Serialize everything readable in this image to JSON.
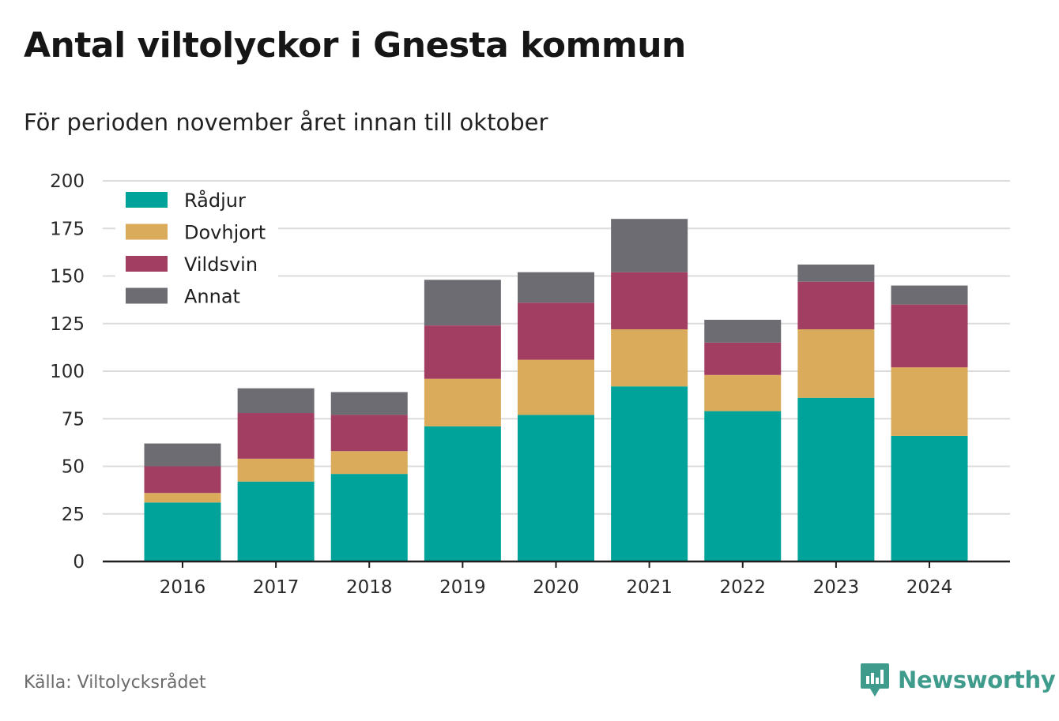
{
  "title": "Antal viltolyckor i Gnesta kommun",
  "subtitle": "För perioden november året innan till oktober",
  "source": "Källa: Viltolycksrådet",
  "brand": "Newsworthy",
  "colors": {
    "Rådjur": "#00a39a",
    "Dovhjort": "#d9ab5a",
    "Vildsvin": "#a33e63",
    "Annat": "#6d6c72",
    "brand": "#3f9b8c",
    "grid": "#dcdcdc",
    "axis": "#1f1f1f"
  },
  "chart_data": {
    "type": "bar",
    "stacked": true,
    "categories": [
      "2016",
      "2017",
      "2018",
      "2019",
      "2020",
      "2021",
      "2022",
      "2023",
      "2024"
    ],
    "series": [
      {
        "name": "Rådjur",
        "values": [
          31,
          42,
          46,
          71,
          77,
          92,
          79,
          86,
          66
        ]
      },
      {
        "name": "Dovhjort",
        "values": [
          5,
          12,
          12,
          25,
          29,
          30,
          19,
          36,
          36
        ]
      },
      {
        "name": "Vildsvin",
        "values": [
          14,
          24,
          19,
          28,
          30,
          30,
          17,
          25,
          33
        ]
      },
      {
        "name": "Annat",
        "values": [
          12,
          13,
          12,
          24,
          16,
          28,
          12,
          9,
          10
        ]
      }
    ],
    "ylim": [
      0,
      200
    ],
    "yticks": [
      0,
      25,
      50,
      75,
      100,
      125,
      150,
      175,
      200
    ],
    "xlabel": "",
    "ylabel": "",
    "grid": true,
    "legend_position": "top-left"
  }
}
